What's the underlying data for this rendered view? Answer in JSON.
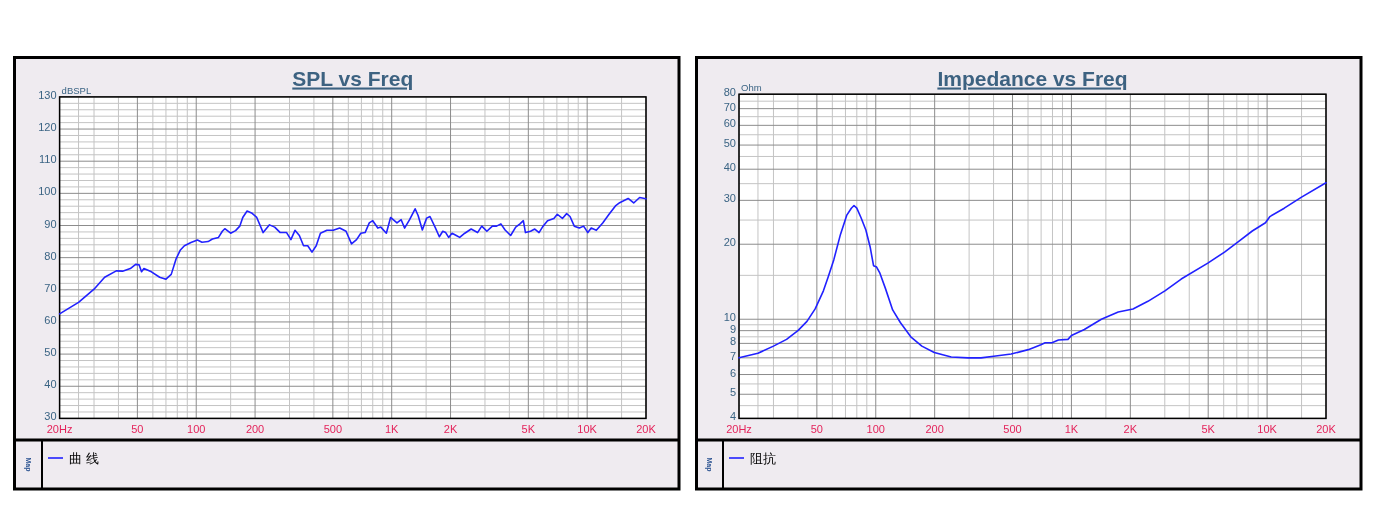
{
  "chart_data": [
    {
      "type": "line",
      "title": "SPL vs Freq",
      "ylabel": "dBSPL",
      "log": "x",
      "grid": true,
      "legend": "bottom",
      "annotations": [
        "Map"
      ],
      "x": [
        20,
        25,
        30,
        34,
        39,
        42,
        46,
        49,
        51,
        52.5,
        54,
        59,
        65,
        70,
        74.5,
        79,
        83,
        87,
        94,
        101.5,
        107,
        115,
        121,
        130,
        136,
        140,
        150,
        159,
        167,
        173,
        182,
        192,
        204,
        220,
        237,
        252,
        269,
        290,
        305,
        320,
        337,
        354,
        372,
        391,
        411,
        432,
        466,
        502,
        542,
        584,
        623,
        661,
        695,
        731,
        768,
        800,
        849,
        880,
        939,
        987,
        1064,
        1118,
        1164,
        1235,
        1318,
        1365,
        1435,
        1509,
        1570,
        1667,
        1753,
        1825,
        1889,
        1956,
        2036,
        2140,
        2228,
        2366,
        2550,
        2750,
        2890,
        3069,
        3274,
        3442,
        3619,
        3804,
        4060,
        4310,
        4531,
        4715,
        4834,
        5133,
        5396,
        5673,
        5906,
        6271,
        6758,
        7034,
        7470,
        7852,
        8172,
        8591,
        9121,
        9589,
        10080,
        10490,
        11140,
        12010,
        12940,
        13950,
        14670,
        15270,
        16210,
        17300,
        18550,
        20000
      ],
      "series": [
        {
          "name": "曲 线",
          "color": "#2121ff",
          "values": [
            62.5,
            66.1,
            70.2,
            73.9,
            75.9,
            75.8,
            76.6,
            77.9,
            77.8,
            75.6,
            76.6,
            75.6,
            73.9,
            73.3,
            74.8,
            79.7,
            82.4,
            83.7,
            84.7,
            85.5,
            84.8,
            85.0,
            85.8,
            86.3,
            88.2,
            89.0,
            87.6,
            88.4,
            89.8,
            92.5,
            94.5,
            93.9,
            92.5,
            87.8,
            90.2,
            89.5,
            87.8,
            87.8,
            85.6,
            88.5,
            86.9,
            83.7,
            83.7,
            81.7,
            83.7,
            87.6,
            88.5,
            88.5,
            89.2,
            88.2,
            84.3,
            85.6,
            87.6,
            87.8,
            90.8,
            91.5,
            89.2,
            89.5,
            87.6,
            92.5,
            90.8,
            91.8,
            89.2,
            91.8,
            95.2,
            93.1,
            88.6,
            92.3,
            92.8,
            89.5,
            86.5,
            88.2,
            87.8,
            86.3,
            87.6,
            86.9,
            86.3,
            87.6,
            88.9,
            87.8,
            89.8,
            88.2,
            89.8,
            89.8,
            90.5,
            88.6,
            86.9,
            89.5,
            90.5,
            91.5,
            87.8,
            88.2,
            88.9,
            87.8,
            89.5,
            91.5,
            92.2,
            93.5,
            92.2,
            93.7,
            92.8,
            89.8,
            89.2,
            89.8,
            87.8,
            89.2,
            88.5,
            90.8,
            93.5,
            96.1,
            97.1,
            97.6,
            98.4,
            97.0,
            98.7,
            98.3
          ]
        }
      ],
      "xlim": [
        20,
        20000
      ],
      "ylim": [
        30,
        130
      ],
      "xticks": [
        {
          "value": 20,
          "label": "20Hz"
        },
        {
          "value": 25,
          "label": null
        },
        {
          "value": 30,
          "label": null
        },
        {
          "value": 40,
          "label": null
        },
        50,
        {
          "value": 60,
          "label": null
        },
        {
          "value": 70,
          "label": null
        },
        {
          "value": 80,
          "label": null
        },
        {
          "value": 90,
          "label": null
        },
        100,
        {
          "value": 150,
          "label": null
        },
        200,
        {
          "value": 300,
          "label": null
        },
        {
          "value": 400,
          "label": null
        },
        500,
        {
          "value": 600,
          "label": null
        },
        {
          "value": 700,
          "label": null
        },
        {
          "value": 800,
          "label": null
        },
        {
          "value": 900,
          "label": null
        },
        {
          "value": 1000,
          "label": "1K"
        },
        {
          "value": 1500,
          "label": null
        },
        {
          "value": 2000,
          "label": "2K"
        },
        {
          "value": 3000,
          "label": null
        },
        {
          "value": 4000,
          "label": null
        },
        {
          "value": 5000,
          "label": "5K"
        },
        {
          "value": 6000,
          "label": null
        },
        {
          "value": 7000,
          "label": null
        },
        {
          "value": 8000,
          "label": null
        },
        {
          "value": 9000,
          "label": null
        },
        {
          "value": 10000,
          "label": "10K"
        },
        {
          "value": 15000,
          "label": null
        },
        {
          "value": 20000,
          "label": "20K"
        }
      ],
      "yticks": [
        30,
        {
          "value": 32,
          "label": null
        },
        {
          "value": 34,
          "label": null
        },
        {
          "value": 36,
          "label": null
        },
        {
          "value": 38,
          "label": null
        },
        40,
        {
          "value": 42,
          "label": null
        },
        {
          "value": 44,
          "label": null
        },
        {
          "value": 46,
          "label": null
        },
        {
          "value": 48,
          "label": null
        },
        50,
        {
          "value": 52,
          "label": null
        },
        {
          "value": 54,
          "label": null
        },
        {
          "value": 56,
          "label": null
        },
        {
          "value": 58,
          "label": null
        },
        60,
        {
          "value": 62,
          "label": null
        },
        {
          "value": 64,
          "label": null
        },
        {
          "value": 66,
          "label": null
        },
        {
          "value": 68,
          "label": null
        },
        70,
        {
          "value": 72,
          "label": null
        },
        {
          "value": 74,
          "label": null
        },
        {
          "value": 76,
          "label": null
        },
        {
          "value": 78,
          "label": null
        },
        80,
        {
          "value": 82,
          "label": null
        },
        {
          "value": 84,
          "label": null
        },
        {
          "value": 86,
          "label": null
        },
        {
          "value": 88,
          "label": null
        },
        90,
        {
          "value": 92,
          "label": null
        },
        {
          "value": 94,
          "label": null
        },
        {
          "value": 96,
          "label": null
        },
        {
          "value": 98,
          "label": null
        },
        100,
        {
          "value": 102,
          "label": null
        },
        {
          "value": 104,
          "label": null
        },
        {
          "value": 106,
          "label": null
        },
        {
          "value": 108,
          "label": null
        },
        110,
        {
          "value": 112,
          "label": null
        },
        {
          "value": 114,
          "label": null
        },
        {
          "value": 116,
          "label": null
        },
        {
          "value": 118,
          "label": null
        },
        120,
        {
          "value": 122,
          "label": null
        },
        {
          "value": 124,
          "label": null
        },
        {
          "value": 126,
          "label": null
        },
        {
          "value": 128,
          "label": null
        },
        130
      ]
    },
    {
      "type": "line",
      "title": "Impedance vs Freq",
      "ylabel": "Ohm",
      "log": "xy",
      "grid": true,
      "legend": "bottom",
      "annotations": [
        "Map"
      ],
      "x": [
        20,
        25,
        30,
        35,
        40,
        44.5,
        49,
        54,
        57,
        61,
        66,
        71,
        75,
        77.4,
        80,
        84,
        89,
        93.6,
        97.4,
        101,
        105,
        112,
        122,
        133.5,
        151,
        172,
        199,
        243,
        297,
        345,
        401,
        492,
        602,
        698,
        734,
        795,
        858,
        960,
        1000,
        1164,
        1422,
        1735,
        2064,
        2460,
        3004,
        3640,
        4978,
        6060,
        7080,
        8400,
        9810,
        10320,
        12240,
        15000,
        20000
      ],
      "series": [
        {
          "name": "阻抗",
          "color": "#2121ff",
          "values": [
            7.0,
            7.3,
            7.8,
            8.3,
            9.0,
            9.8,
            11.0,
            13.0,
            14.7,
            17.3,
            21.9,
            26.1,
            27.9,
            28.6,
            27.9,
            25.6,
            22.8,
            19.5,
            16.4,
            16.2,
            15.3,
            13.3,
            10.9,
            9.7,
            8.5,
            7.8,
            7.35,
            7.05,
            7.0,
            7.0,
            7.1,
            7.25,
            7.55,
            7.9,
            8.05,
            8.05,
            8.25,
            8.3,
            8.6,
            9.1,
            10.0,
            10.7,
            11.0,
            11.8,
            13.0,
            14.5,
            16.8,
            18.6,
            20.4,
            22.6,
            24.4,
            25.8,
            27.9,
            30.9,
            35.3
          ]
        }
      ],
      "xlim": [
        20,
        20000
      ],
      "ylim": [
        4,
        80
      ],
      "xticks": [
        {
          "value": 20,
          "label": "20Hz"
        },
        {
          "value": 25,
          "label": null
        },
        {
          "value": 30,
          "label": null
        },
        {
          "value": 40,
          "label": null
        },
        50,
        {
          "value": 60,
          "label": null
        },
        {
          "value": 70,
          "label": null
        },
        {
          "value": 80,
          "label": null
        },
        {
          "value": 90,
          "label": null
        },
        100,
        {
          "value": 150,
          "label": null
        },
        200,
        {
          "value": 300,
          "label": null
        },
        {
          "value": 400,
          "label": null
        },
        500,
        {
          "value": 600,
          "label": null
        },
        {
          "value": 700,
          "label": null
        },
        {
          "value": 800,
          "label": null
        },
        {
          "value": 900,
          "label": null
        },
        {
          "value": 1000,
          "label": "1K"
        },
        {
          "value": 1500,
          "label": null
        },
        {
          "value": 2000,
          "label": "2K"
        },
        {
          "value": 3000,
          "label": null
        },
        {
          "value": 4000,
          "label": null
        },
        {
          "value": 5000,
          "label": "5K"
        },
        {
          "value": 6000,
          "label": null
        },
        {
          "value": 7000,
          "label": null
        },
        {
          "value": 8000,
          "label": null
        },
        {
          "value": 9000,
          "label": null
        },
        {
          "value": 10000,
          "label": "10K"
        },
        {
          "value": 15000,
          "label": null
        },
        {
          "value": 20000,
          "label": "20K"
        }
      ],
      "yticks": [
        4,
        {
          "value": 4.5,
          "label": null
        },
        5,
        {
          "value": 5.5,
          "label": null
        },
        6,
        {
          "value": 6.5,
          "label": null
        },
        7,
        {
          "value": 7.5,
          "label": null
        },
        8,
        {
          "value": 8.5,
          "label": null
        },
        9,
        {
          "value": 9.5,
          "label": null
        },
        10,
        {
          "value": 15,
          "label": null
        },
        20,
        {
          "value": 25,
          "label": null
        },
        30,
        {
          "value": 35,
          "label": null
        },
        40,
        {
          "value": 45,
          "label": null
        },
        50,
        {
          "value": 55,
          "label": null
        },
        60,
        {
          "value": 65,
          "label": null
        },
        70,
        {
          "value": 75,
          "label": null
        },
        80
      ]
    }
  ]
}
